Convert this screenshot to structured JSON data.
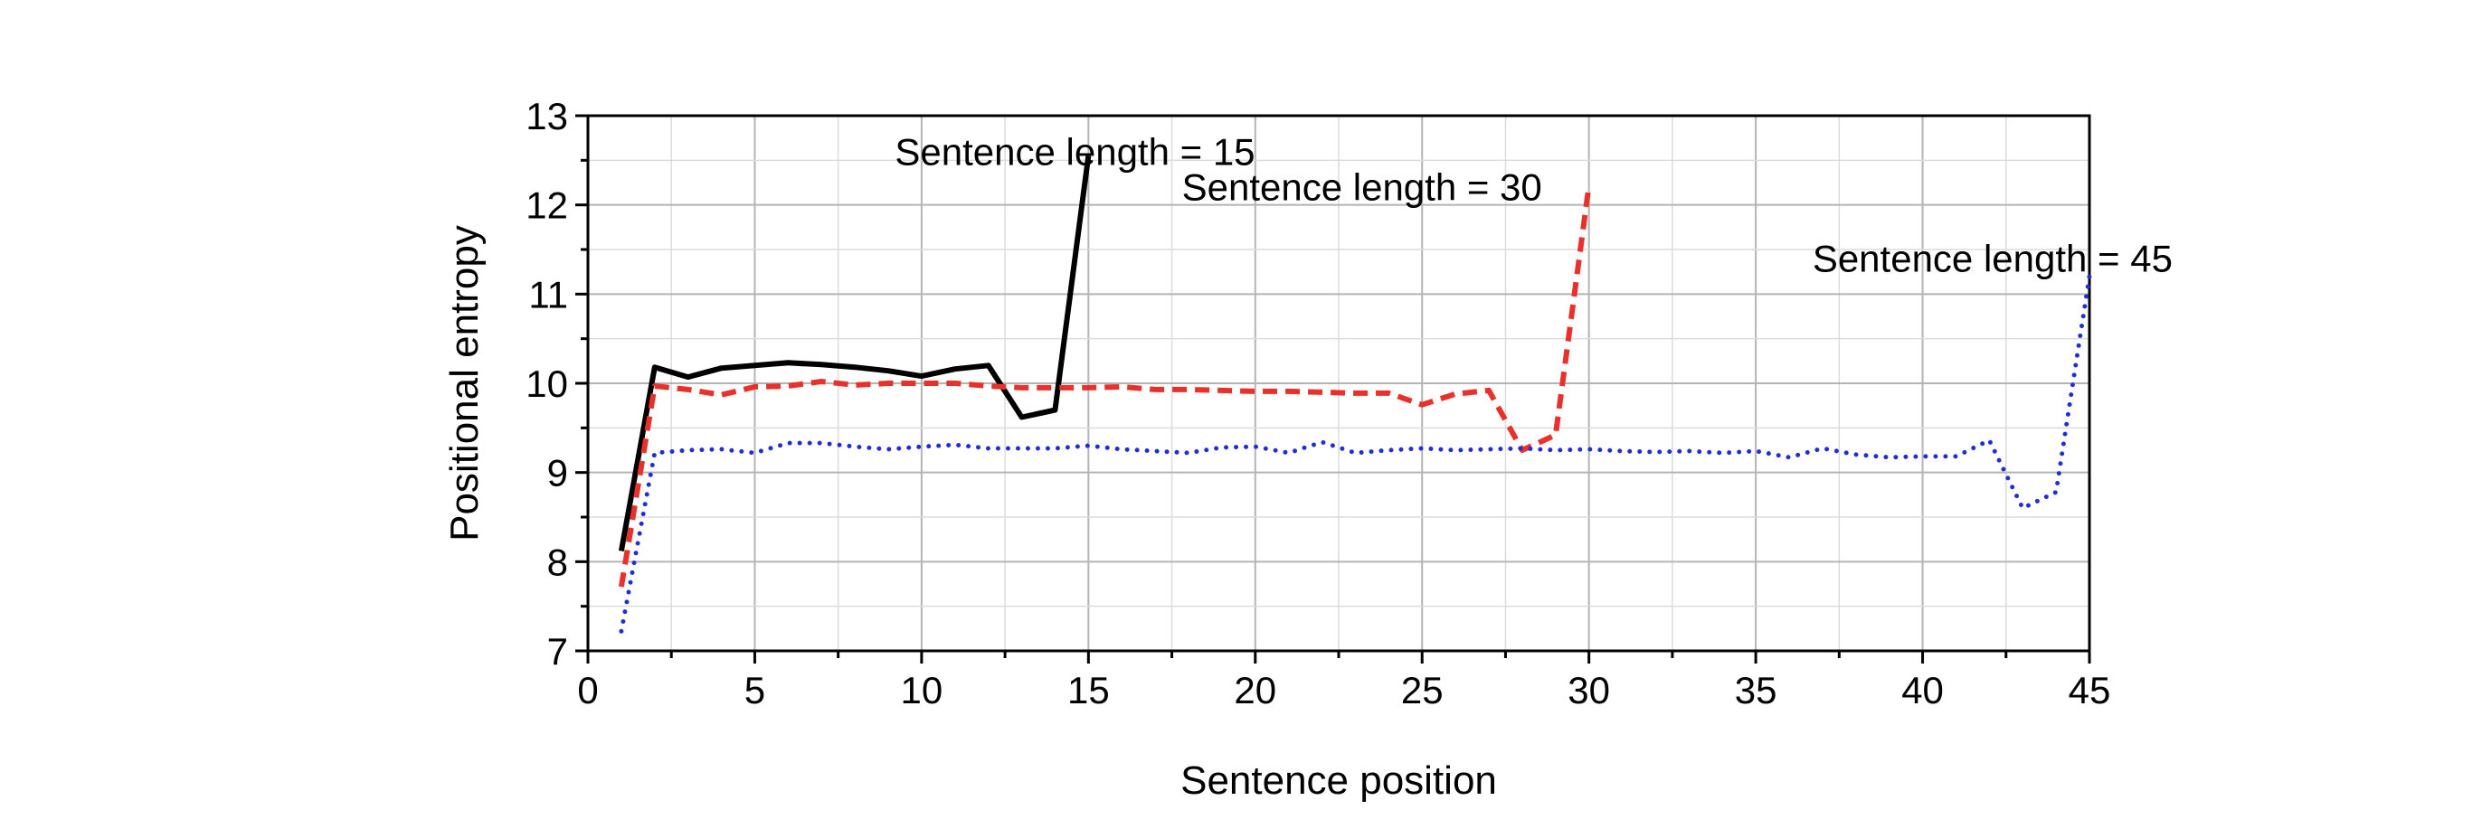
{
  "chart_data": {
    "type": "line",
    "title": "",
    "xlabel": "Sentence position",
    "ylabel": "Positional entropy",
    "xlim": [
      0,
      45
    ],
    "ylim": [
      7,
      13
    ],
    "xticks": [
      0,
      5,
      10,
      15,
      20,
      25,
      30,
      35,
      40,
      45
    ],
    "yticks": [
      7,
      8,
      9,
      10,
      11,
      12,
      13
    ],
    "grid": true,
    "legend": "none",
    "series": [
      {
        "name": "Sentence length = 15",
        "color": "#000000",
        "style": "solid",
        "x": [
          1,
          2,
          3,
          4,
          5,
          6,
          7,
          8,
          9,
          10,
          11,
          12,
          13,
          14,
          15
        ],
        "values": [
          8.12,
          10.18,
          10.07,
          10.17,
          10.2,
          10.23,
          10.21,
          10.18,
          10.14,
          10.08,
          10.16,
          10.2,
          9.62,
          9.7,
          12.55
        ]
      },
      {
        "name": "Sentence length = 30",
        "color": "#e8312a",
        "style": "dashed",
        "x": [
          1,
          2,
          3,
          4,
          5,
          6,
          7,
          8,
          9,
          10,
          11,
          12,
          13,
          14,
          15,
          16,
          17,
          18,
          19,
          20,
          21,
          22,
          23,
          24,
          25,
          26,
          27,
          28,
          29,
          30
        ],
        "values": [
          7.72,
          9.97,
          9.93,
          9.87,
          9.96,
          9.97,
          10.02,
          9.98,
          10.0,
          10.0,
          10.0,
          9.97,
          9.95,
          9.95,
          9.95,
          9.96,
          9.93,
          9.93,
          9.92,
          9.91,
          9.91,
          9.9,
          9.89,
          9.89,
          9.76,
          9.88,
          9.92,
          9.25,
          9.42,
          12.22
        ]
      },
      {
        "name": "Sentence length = 45",
        "color": "#1f2fd6",
        "style": "dotted",
        "x": [
          1,
          2,
          3,
          4,
          5,
          6,
          7,
          8,
          9,
          10,
          11,
          12,
          13,
          14,
          15,
          16,
          17,
          18,
          19,
          20,
          21,
          22,
          23,
          24,
          25,
          26,
          27,
          28,
          29,
          30,
          31,
          32,
          33,
          34,
          35,
          36,
          37,
          38,
          39,
          40,
          41,
          42,
          43,
          44,
          45
        ],
        "values": [
          7.22,
          9.22,
          9.25,
          9.26,
          9.22,
          9.33,
          9.33,
          9.29,
          9.26,
          9.29,
          9.31,
          9.27,
          9.27,
          9.27,
          9.3,
          9.26,
          9.24,
          9.22,
          9.28,
          9.29,
          9.22,
          9.34,
          9.22,
          9.25,
          9.27,
          9.25,
          9.26,
          9.27,
          9.25,
          9.26,
          9.24,
          9.23,
          9.24,
          9.22,
          9.24,
          9.17,
          9.27,
          9.2,
          9.17,
          9.18,
          9.18,
          9.36,
          8.6,
          8.78,
          11.2
        ]
      }
    ],
    "annotations": [
      {
        "text": "Sentence length = 15",
        "x": 9.2,
        "y": 12.45
      },
      {
        "text": "Sentence length = 30",
        "x": 17.8,
        "y": 12.05
      },
      {
        "text": "Sentence length = 45",
        "x": 36.7,
        "y": 11.25
      }
    ]
  }
}
